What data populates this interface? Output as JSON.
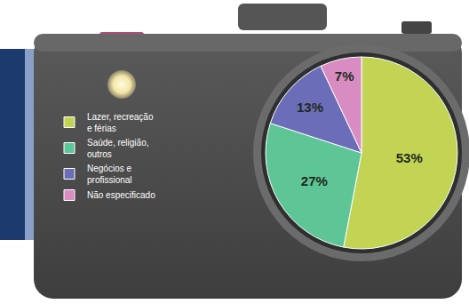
{
  "chart_data": {
    "type": "pie",
    "categories": [
      "Lazer, recreação e férias",
      "Saúde, religião, outros",
      "Negócios e profissional",
      "Não especificado"
    ],
    "values": [
      53,
      27,
      13,
      7
    ],
    "value_labels": [
      "53%",
      "27%",
      "13%",
      "7%"
    ],
    "colors": [
      "#c3d455",
      "#5ec597",
      "#6c6db8",
      "#d98cc2"
    ],
    "data_labels": true,
    "legend": "left"
  }
}
